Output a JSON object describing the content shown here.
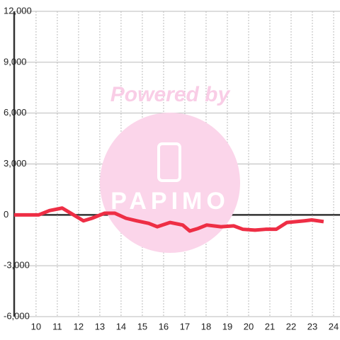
{
  "chart_data": {
    "type": "line",
    "watermark": {
      "text": "Powered by",
      "logo": "PAPIMO"
    },
    "x": [
      8.97,
      10.13,
      10.63,
      11.23,
      11.63,
      12.23,
      12.63,
      13.23,
      13.7,
      14.23,
      14.73,
      15.3,
      15.7,
      16.3,
      16.9,
      17.23,
      17.63,
      18.03,
      18.7,
      19.3,
      19.73,
      20.3,
      20.8,
      21.3,
      21.8,
      22.63,
      22.97,
      23.53
    ],
    "series": [
      {
        "color": "#ee2e45",
        "values": [
          0,
          0,
          250,
          400,
          100,
          -350,
          -200,
          100,
          100,
          -200,
          -350,
          -500,
          -700,
          -450,
          -600,
          -950,
          -800,
          -600,
          -700,
          -650,
          -850,
          -900,
          -850,
          -850,
          -450,
          -350,
          -300,
          -400
        ]
      }
    ],
    "xlim": [
      8.97,
      24.3
    ],
    "ylim": [
      -6000,
      12000
    ],
    "xticks": [
      10,
      11,
      12,
      13,
      14,
      15,
      16,
      17,
      18,
      19,
      20,
      21,
      22,
      23,
      24
    ],
    "yticks": [
      {
        "value": -6000,
        "label": "-6,000"
      },
      {
        "value": -3000,
        "label": "-3,000"
      },
      0,
      {
        "value": 3000,
        "label": "3,000"
      },
      {
        "value": 6000,
        "label": "6,000"
      },
      {
        "value": 9000,
        "label": "9,000"
      },
      {
        "value": 12000,
        "label": "12,000"
      }
    ],
    "grid": true
  }
}
